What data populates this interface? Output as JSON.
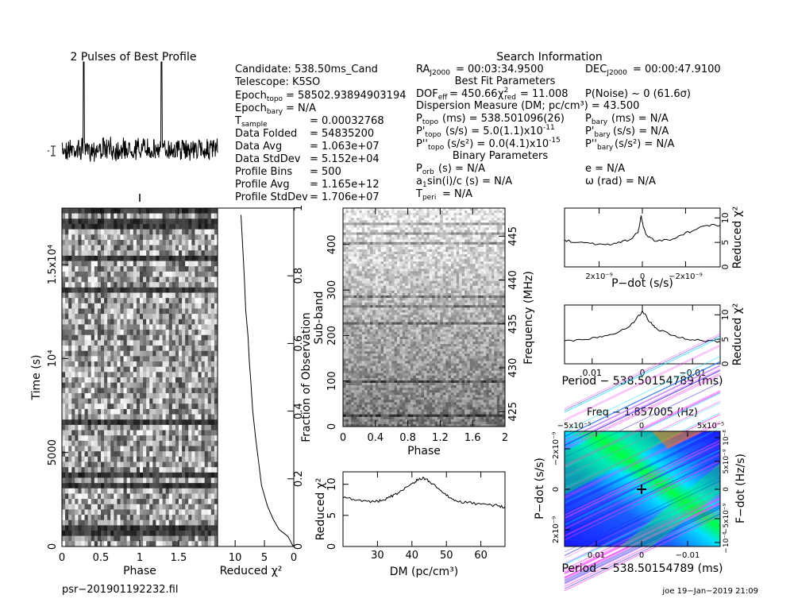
{
  "texts": {
    "profile_title": "2 Pulses of Best Profile",
    "search_title": "Search Information",
    "candidate": "Candidate:  538.50ms_Cand",
    "telescope": "Telescope:  K5SO",
    "epoch_topo": "= 58502.93894903194",
    "epoch_bary": "= N/A",
    "left_labels": [
      "T",
      "Data Folded",
      "Data Avg",
      "Data StdDev",
      "Profile Bins",
      "Profile Avg",
      "Profile StdDev"
    ],
    "left_values": [
      "=   0.00032768",
      "=   54835200",
      "=   1.063e+07",
      "=   5.152e+04",
      "=   500",
      "=   1.165e+12",
      "=   1.706e+07"
    ],
    "ra": "= 00:03:34.9500",
    "dec": "= 00:00:47.9100",
    "best_fit": "Best Fit Parameters",
    "dof": "= 450.66",
    "chi_red": "= 11.008",
    "pnoise": "P(Noise) ~ 0    (61.6σ)",
    "dm_line": "Dispersion Measure (DM; pc/cm³) = 43.500",
    "p_topo": "(ms)  =   538.501096(26)",
    "p_bary": "(ms) = N/A",
    "pd_topo": "(s/s) =   5.0(1.1)x10",
    "pd_topo_exp": "-11",
    "pd_bary": "(s/s) = N/A",
    "pdd_topo": "(s/s²) = 0.0(4.1)x10",
    "pdd_topo_exp": "-15",
    "pdd_bary": "(s/s²) = N/A",
    "binary": "Binary Parameters",
    "porb": "(s) = N/A",
    "ecc": "e = N/A",
    "asini": "sin(i)/c (s) = N/A",
    "omega": "ω (rad) = N/A",
    "tperi": "= N/A",
    "filename": "psr−201901192232.fil",
    "footer": "joe 19−Jan−2019 21:09",
    "freq_title": "Freq − 1.857005 (Hz)",
    "axes": {
      "time_label": "Time (s)",
      "phase_label": "Phase",
      "redchi_label": "Reduced χ²",
      "frac_label": "Fraction of Observation",
      "subband_label": "Sub-band",
      "freq_label": "Frequency (MHz)",
      "dm_label": "DM (pc/cm³)",
      "pdot_label": "P−dot (s/s)",
      "period_label": "Period − 538.50154789 (ms)",
      "fdot_label": "F−dot (Hz/s)"
    }
  },
  "chart_data": [
    {
      "id": "profile",
      "type": "line",
      "title": "2 Pulses of Best Profile",
      "xlim": [
        0,
        2
      ],
      "pulse_phases": [
        0.28,
        1.28
      ],
      "note": "noise-like baseline with two narrow pulses"
    },
    {
      "id": "time-phase",
      "type": "heatmap",
      "xlabel": "Phase",
      "ylabel": "Time (s)",
      "xlim": [
        0,
        2
      ],
      "ylim": [
        0,
        18000
      ],
      "x_ticks": [
        "0",
        "0.5",
        "1",
        "1.5"
      ],
      "y_ticks": [
        "0",
        "5000",
        "10⁴",
        "1.5x10⁴"
      ]
    },
    {
      "id": "time-redchi",
      "type": "line",
      "xlabel": "Reduced χ²",
      "ylabel": "Fraction of Observation",
      "xlim": [
        13,
        0
      ],
      "ylim": [
        0,
        1
      ],
      "x_ticks": [
        "10",
        "5",
        "0"
      ],
      "y_ticks": [
        "0",
        "0.2",
        "0.4",
        "0.6",
        "0.8",
        "1"
      ],
      "x": [
        0.1,
        1,
        2.5,
        3.5,
        4.5,
        5.5,
        6,
        6.5,
        7,
        7.3,
        7.6,
        7.8,
        8.2,
        8.4,
        8.6,
        9
      ],
      "y": [
        0,
        0.03,
        0.05,
        0.08,
        0.12,
        0.18,
        0.25,
        0.32,
        0.4,
        0.48,
        0.55,
        0.62,
        0.7,
        0.78,
        0.85,
        0.98
      ]
    },
    {
      "id": "subband-phase",
      "type": "heatmap",
      "xlabel": "Phase",
      "ylabel": "Sub-band",
      "ylabel2": "Frequency (MHz)",
      "xlim": [
        0,
        2
      ],
      "ylim": [
        0,
        480
      ],
      "freq_lim": [
        423.3,
        448.2
      ],
      "x_ticks": [
        "0",
        "0.4",
        "0.8",
        "1.2",
        "1.6",
        "2"
      ],
      "y_ticks": [
        "0",
        "100",
        "200",
        "300",
        "400"
      ],
      "freq_ticks": [
        "425",
        "430",
        "435",
        "440",
        "445"
      ]
    },
    {
      "id": "dm-redchi",
      "type": "line",
      "xlabel": "DM (pc/cm³)",
      "ylabel": "Reduced χ²",
      "xlim": [
        20,
        67
      ],
      "ylim": [
        0,
        12
      ],
      "x_ticks": [
        "30",
        "40",
        "50",
        "60"
      ],
      "y_ticks": [
        "0",
        "5",
        "10"
      ],
      "x": [
        20,
        23,
        26,
        29,
        31,
        33,
        35,
        37,
        39,
        41,
        42,
        43.5,
        45,
        47,
        49,
        51,
        53,
        56,
        59,
        62,
        65,
        67
      ],
      "y": [
        7.8,
        7.6,
        7.4,
        7.2,
        7.3,
        7.8,
        8.4,
        9,
        9.7,
        10.4,
        10.8,
        11,
        10.5,
        9.6,
        8.6,
        7.8,
        7.3,
        7,
        6.9,
        6.7,
        6.5,
        6.4
      ]
    },
    {
      "id": "pdot-redchi",
      "type": "line",
      "xlabel": "P−dot (s/s)",
      "ylabel": "Reduced χ²",
      "xlim": [
        3.6e-09,
        -3.6e-09
      ],
      "ylim": [
        0,
        12
      ],
      "x_ticks": [
        "2x10⁻⁹",
        "0",
        "−2x10⁻⁹"
      ],
      "y_ticks": [
        "0",
        "5",
        "10"
      ],
      "x": [
        3.6e-09,
        3e-09,
        2.4e-09,
        1.8e-09,
        1.2e-09,
        6e-10,
        2e-10,
        5e-11,
        -5e-11,
        -2e-10,
        -6e-10,
        -1.2e-09,
        -1.8e-09,
        -2.4e-09,
        -3e-09,
        -3.6e-09
      ],
      "y": [
        5.5,
        5,
        4.8,
        4.6,
        4.8,
        5.5,
        7,
        10.5,
        8,
        6.5,
        5.2,
        5.5,
        6.5,
        7.5,
        8.5,
        8.5
      ]
    },
    {
      "id": "period-redchi",
      "type": "line",
      "xlabel": "Period − 538.50154789 (ms)",
      "ylabel": "Reduced χ²",
      "xlim": [
        0.0155,
        -0.0155
      ],
      "ylim": [
        0,
        12
      ],
      "x_ticks": [
        "0.01",
        "0",
        "−0.01"
      ],
      "y_ticks": [
        "0",
        "5",
        "10"
      ],
      "x": [
        0.0155,
        0.012,
        0.009,
        0.006,
        0.003,
        0.0015,
        0,
        -0.0015,
        -0.003,
        -0.006,
        -0.009,
        -0.012,
        -0.0155
      ],
      "y": [
        4.7,
        4.9,
        5.3,
        6,
        7.3,
        8.7,
        10.8,
        8.5,
        7,
        5.8,
        5,
        4.7,
        4.6
      ]
    },
    {
      "id": "period-pdot",
      "type": "heatmap",
      "title": "Freq − 1.857005 (Hz)",
      "xlabel": "Period − 538.50154789 (ms)",
      "ylabel": "P−dot (s/s)",
      "ylabel2": "F−dot (Hz/s)",
      "x_ticks": [
        "0.01",
        "0",
        "−0.01"
      ],
      "top_ticks": [
        "−5x10⁻⁵",
        "0",
        "5x10⁻⁵"
      ],
      "y_ticks": [
        "2x10⁻⁹",
        "0",
        "−2x10⁻⁹"
      ],
      "right_ticks": [
        "−10⁻⁸",
        "−5x10⁻⁹",
        "0",
        "5x10⁻⁹",
        "10⁻⁸"
      ],
      "colors": [
        "#1a1aff",
        "#00e0ff",
        "#00ff40",
        "#ff8000",
        "#ff40ff"
      ]
    }
  ]
}
